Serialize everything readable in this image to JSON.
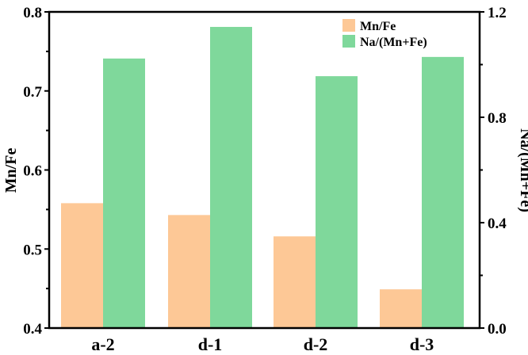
{
  "chart_data": {
    "type": "bar",
    "categories": [
      "a-2",
      "d-1",
      "d-2",
      "d-3"
    ],
    "series": [
      {
        "name": "Mn/Fe",
        "axis": "left",
        "color": "#FDC896",
        "values": [
          0.558,
          0.543,
          0.516,
          0.449
        ]
      },
      {
        "name": "Na/(Mn+Fe)",
        "axis": "right",
        "color": "#7FD89B",
        "values": [
          1.023,
          1.143,
          0.956,
          1.029
        ]
      }
    ],
    "ylabel": "Mn/Fe",
    "ylabel_right": "Na/(Mn+Fe)",
    "ylim": [
      0.4,
      0.8
    ],
    "ylim_right": [
      0.0,
      1.2
    ],
    "yticks": [
      "0.4",
      "0.5",
      "0.6",
      "0.7",
      "0.8"
    ],
    "yticks_right": [
      "0.0",
      "0.4",
      "0.8",
      "1.2"
    ],
    "grid": false,
    "legend": "top-right"
  }
}
